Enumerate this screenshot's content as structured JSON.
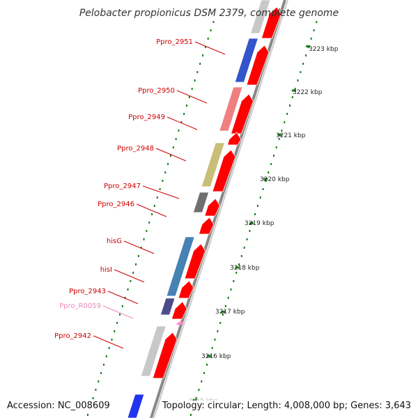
{
  "title": "Pelobacter propionicus DSM 2379, complete genome",
  "footer": {
    "accession": "Accession: NC_008609",
    "topology": "Topology: circular; Length: 4,008,000 bp; Genes: 3,643"
  },
  "colors": {
    "reverse_cds": "#ff0000",
    "gene_label": "#cc0000",
    "rna_label": "#ee88bb",
    "backbone": "#999999",
    "tick_green": "#1a7f1a"
  },
  "scale_ticks": [
    "3223 kbp",
    "3222 kbp",
    "3221 kbp",
    "3220 kbp",
    "3219 kbp",
    "3218 kbp",
    "3217 kbp",
    "3216 kbp",
    "3215 kbp"
  ],
  "genes": [
    {
      "label": "Ppro_2951",
      "kind": "cds",
      "color": "#3355cc"
    },
    {
      "label": "Ppro_2950",
      "kind": "cds",
      "color": "#f08080"
    },
    {
      "label": "Ppro_2949",
      "kind": "cds",
      "color": "#ff0000"
    },
    {
      "label": "Ppro_2948",
      "kind": "cds",
      "color": "#c8be78"
    },
    {
      "label": "Ppro_2947",
      "kind": "cds",
      "color": "#707070"
    },
    {
      "label": "Ppro_2946",
      "kind": "cds",
      "color": "#ff0000"
    },
    {
      "label": "hisG",
      "kind": "cds",
      "color": "#4682b4"
    },
    {
      "label": "hisI",
      "kind": "cds",
      "color": "#4682b4"
    },
    {
      "label": "Ppro_2943",
      "kind": "cds",
      "color": "#4b4b8c"
    },
    {
      "label": "Ppro_R0059",
      "kind": "rna",
      "color": "#ff88cc"
    },
    {
      "label": "Ppro_2942",
      "kind": "cds",
      "color": "#c8c8c8"
    }
  ]
}
